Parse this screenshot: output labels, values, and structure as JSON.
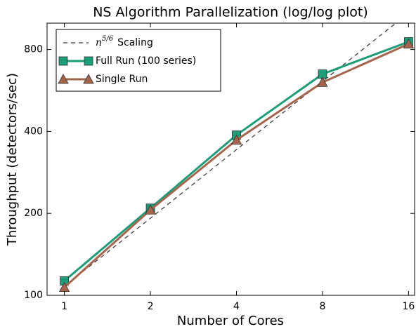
{
  "chart_data": {
    "type": "line",
    "title": "NS Algorithm Parallelization (log/log plot)",
    "x_label": "Number of Cores",
    "y_label": "Throughput (detectors/sec)",
    "x": [
      1,
      2,
      4,
      8,
      16
    ],
    "xscale": "log",
    "yscale": "log",
    "xlim": [
      0.87,
      16.8
    ],
    "ylim": [
      100,
      1000
    ],
    "xticks": [
      1,
      2,
      4,
      8,
      16
    ],
    "yticks": [
      100,
      200,
      400,
      800
    ],
    "legend": "upper left",
    "series": [
      {
        "name_base": "n",
        "name_exponent": "5/6",
        "name": "Scaling",
        "color": "#333333",
        "style": "dashed",
        "marker": "none",
        "values": [
          108,
          192,
          343,
          611,
          1089
        ]
      },
      {
        "name": "Full Run (100 series)",
        "color": "#1b9e77",
        "style": "solid",
        "marker": "square",
        "values": [
          113,
          209,
          388,
          650,
          854
        ]
      },
      {
        "name": "Single Run",
        "color": "#a6644c",
        "style": "solid",
        "marker": "triangle",
        "values": [
          107,
          206,
          372,
          606,
          839
        ]
      }
    ]
  }
}
